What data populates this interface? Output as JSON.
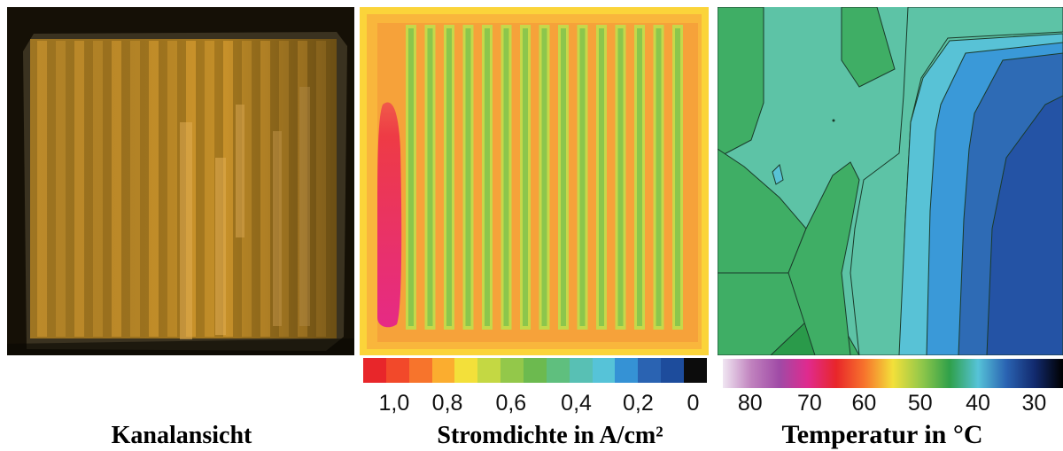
{
  "panels": {
    "photo": {
      "caption": "Kanalansicht"
    },
    "current": {
      "caption": "Stromdichte in A/cm²",
      "colorbar": {
        "ticks": [
          "1,0",
          "0,8",
          "0,6",
          "0,4",
          "0,2",
          "0"
        ],
        "colors": [
          "#e8262a",
          "#f2492a",
          "#f7742c",
          "#fbad2f",
          "#f3e03a",
          "#c4d843",
          "#93c84a",
          "#6cba4f",
          "#5fbf7e",
          "#58c0b4",
          "#56c3d8",
          "#3592d5",
          "#2a63b2",
          "#1d4c9c",
          "#0c0c0c"
        ]
      }
    },
    "temperature": {
      "caption": "Temperatur in °C",
      "colorbar": {
        "ticks": [
          "80",
          "70",
          "60",
          "50",
          "40",
          "30"
        ],
        "gradient": [
          "#f0e6f2",
          "#c082be",
          "#a04aa6",
          "#e02a8e",
          "#e8262a",
          "#f7742c",
          "#f3e03a",
          "#93c84a",
          "#2fa04a",
          "#56c3d8",
          "#2a63b2",
          "#122a6e",
          "#000000"
        ]
      }
    }
  }
}
